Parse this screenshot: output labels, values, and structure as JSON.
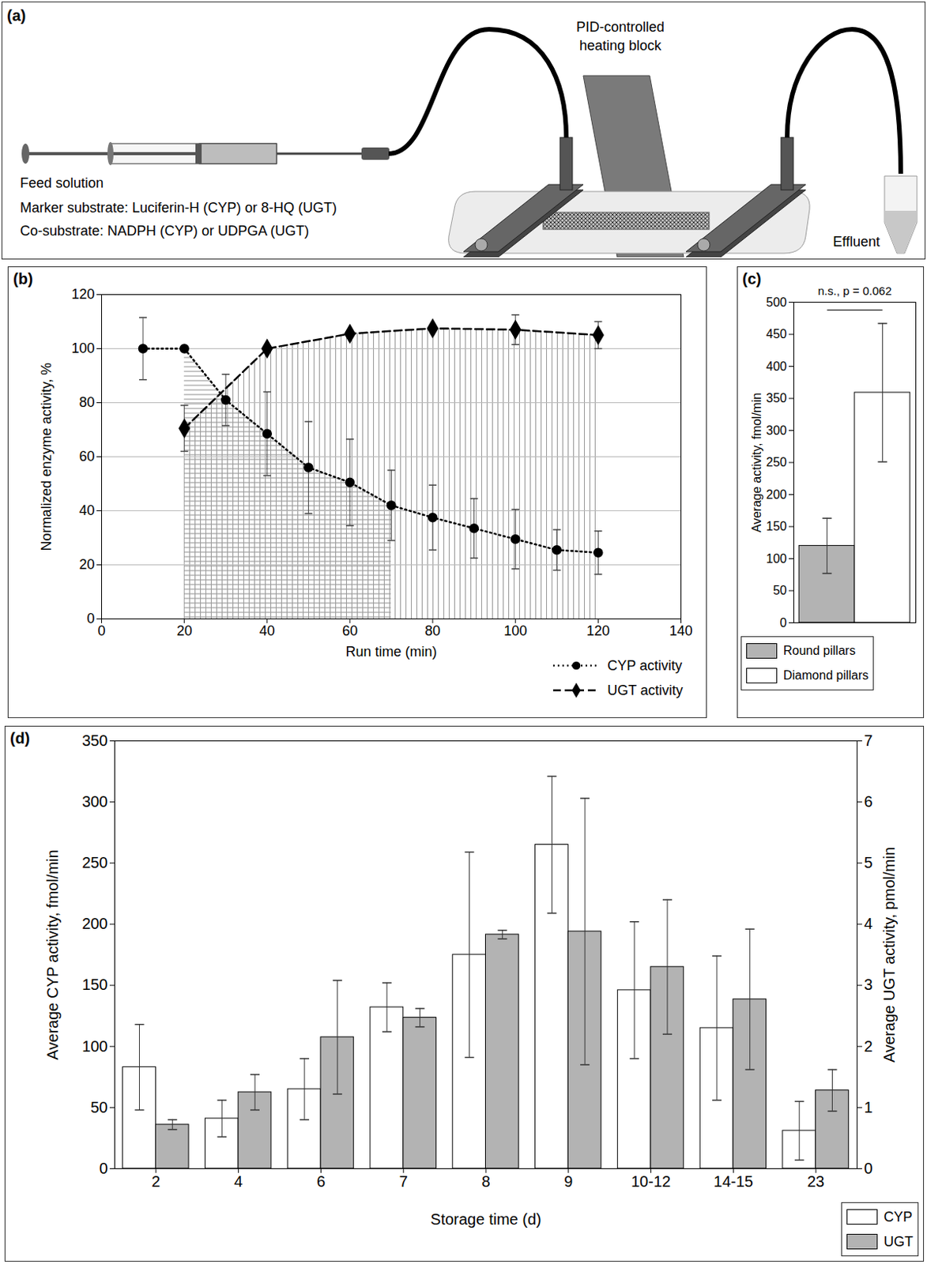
{
  "diagram": {
    "panel": "(a)",
    "heating_block": "PID-controlled heating block",
    "feed_solution": "Feed solution",
    "marker_substrate": "Marker substrate: Luciferin-H (CYP) or 8-HQ (UGT)",
    "co_substrate": "Co-substrate: NADPH (CYP) or UDPGA (UGT)",
    "effluent": "Effluent"
  },
  "chart_data": [
    {
      "panel": "(b)",
      "type": "line",
      "xlabel": "Run time (min)",
      "ylabel": "Normalized enzyme activity, %",
      "xlim": [
        0,
        140
      ],
      "xticks": [
        0,
        20,
        40,
        60,
        80,
        100,
        120,
        140
      ],
      "ylim": [
        0,
        120
      ],
      "yticks": [
        0,
        20,
        40,
        60,
        80,
        100,
        120
      ],
      "grid": true,
      "legend": "bottom-right",
      "series": [
        {
          "name": "CYP activity",
          "color": "#000000",
          "marker": "circle",
          "line_style": "dotted",
          "x": [
            10,
            20,
            30,
            40,
            50,
            60,
            70,
            80,
            90,
            100,
            110,
            120
          ],
          "values": [
            100,
            100,
            81,
            68.5,
            56,
            50.5,
            42,
            37.5,
            33.5,
            29.5,
            25.5,
            24.5
          ],
          "errors": [
            11.5,
            null,
            9.5,
            15.5,
            17,
            16,
            13,
            12,
            11,
            11,
            7.5,
            8
          ],
          "shaded_x": [
            20,
            70
          ]
        },
        {
          "name": "UGT activity",
          "color": "#000000",
          "marker": "diamond",
          "line_style": "dashed",
          "x": [
            20,
            40,
            60,
            80,
            100,
            120
          ],
          "values": [
            70.5,
            100,
            105.5,
            107.5,
            107,
            105
          ],
          "errors": [
            8.5,
            null,
            null,
            null,
            5.5,
            5
          ],
          "shaded_x": [
            20,
            120
          ]
        }
      ]
    },
    {
      "panel": "(c)",
      "type": "bar",
      "ylabel": "Average activity, fmol/min",
      "categories": [
        "Round pillars",
        "Diamond pillars"
      ],
      "values": [
        120,
        359
      ],
      "errors": [
        43,
        108
      ],
      "colors": [
        "#b3b3b3",
        "#ffffff"
      ],
      "ylim": [
        0,
        500
      ],
      "yticks": [
        0,
        50,
        100,
        150,
        200,
        250,
        300,
        350,
        400,
        450,
        500
      ],
      "grid": false,
      "tick_labels": "y",
      "legend": "bottom",
      "annotation": "n.s., p = 0.062"
    },
    {
      "panel": "(d)",
      "type": "bar",
      "xlabel": "Storage time (d)",
      "ylabel": "Average CYP activity, fmol/min",
      "y2label": "Average UGT activity, pmol/min",
      "categories": [
        "2",
        "4",
        "6",
        "7",
        "8",
        "9",
        "10-12",
        "14-15",
        "23"
      ],
      "ylim": [
        0,
        350
      ],
      "yticks": [
        0,
        50,
        100,
        150,
        200,
        250,
        300,
        350
      ],
      "y2lim": [
        0,
        7
      ],
      "y2ticks": [
        0,
        1,
        2,
        3,
        4,
        5,
        6,
        7
      ],
      "grid": false,
      "legend": "bottom-right",
      "series": [
        {
          "name": "CYP",
          "color": "#ffffff",
          "values": [
            83,
            41,
            65,
            132,
            175,
            265,
            146,
            115,
            31
          ],
          "errors": [
            35,
            15,
            25,
            20,
            84,
            56,
            56,
            59,
            24
          ]
        },
        {
          "name": "UGT",
          "color": "#b3b3b3",
          "axis": "y2",
          "values": [
            0.72,
            1.25,
            2.15,
            2.47,
            3.83,
            3.88,
            3.3,
            2.77,
            1.28
          ],
          "errors": [
            0.08,
            0.29,
            0.93,
            0.15,
            0.07,
            2.18,
            1.1,
            1.15,
            0.34
          ]
        }
      ]
    }
  ]
}
